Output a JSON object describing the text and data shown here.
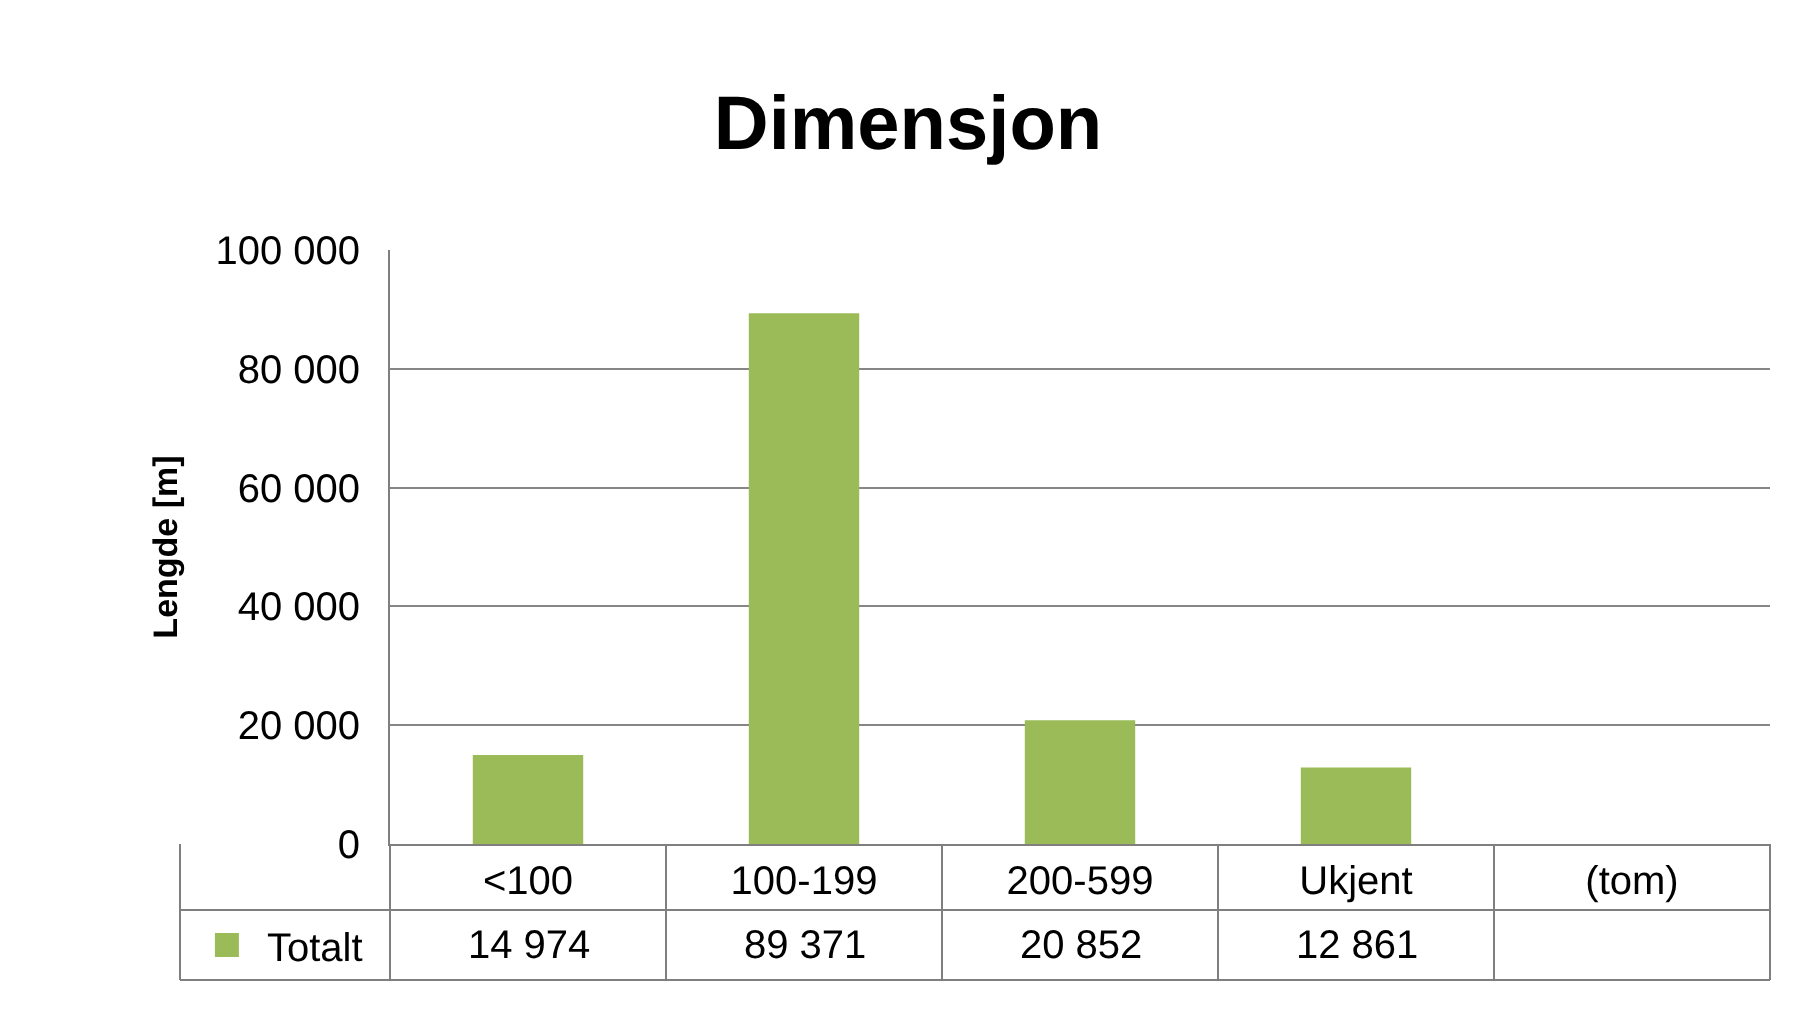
{
  "chart_data": {
    "type": "bar",
    "title": "Dimensjon",
    "ylabel": "Lengde [m]",
    "categories": [
      "<100",
      "100-199",
      "200-599",
      "Ukjent",
      "(tom)"
    ],
    "series": [
      {
        "name": "Totalt",
        "color": "#9bbb59",
        "values": [
          14974,
          89371,
          20852,
          12861,
          null
        ],
        "value_labels": [
          "14 974",
          "89 371",
          "20 852",
          "12 861",
          null
        ]
      }
    ],
    "ylim": [
      0,
      100000
    ],
    "yticks": [
      {
        "value": 0,
        "label": "0"
      },
      {
        "value": 20000,
        "label": "20 000"
      },
      {
        "value": 40000,
        "label": "40 000"
      },
      {
        "value": 60000,
        "label": "60 000"
      },
      {
        "value": 80000,
        "label": "80 000"
      },
      {
        "value": 100000,
        "label": "100 000"
      }
    ],
    "grid": "y",
    "legend": "bottom left"
  }
}
